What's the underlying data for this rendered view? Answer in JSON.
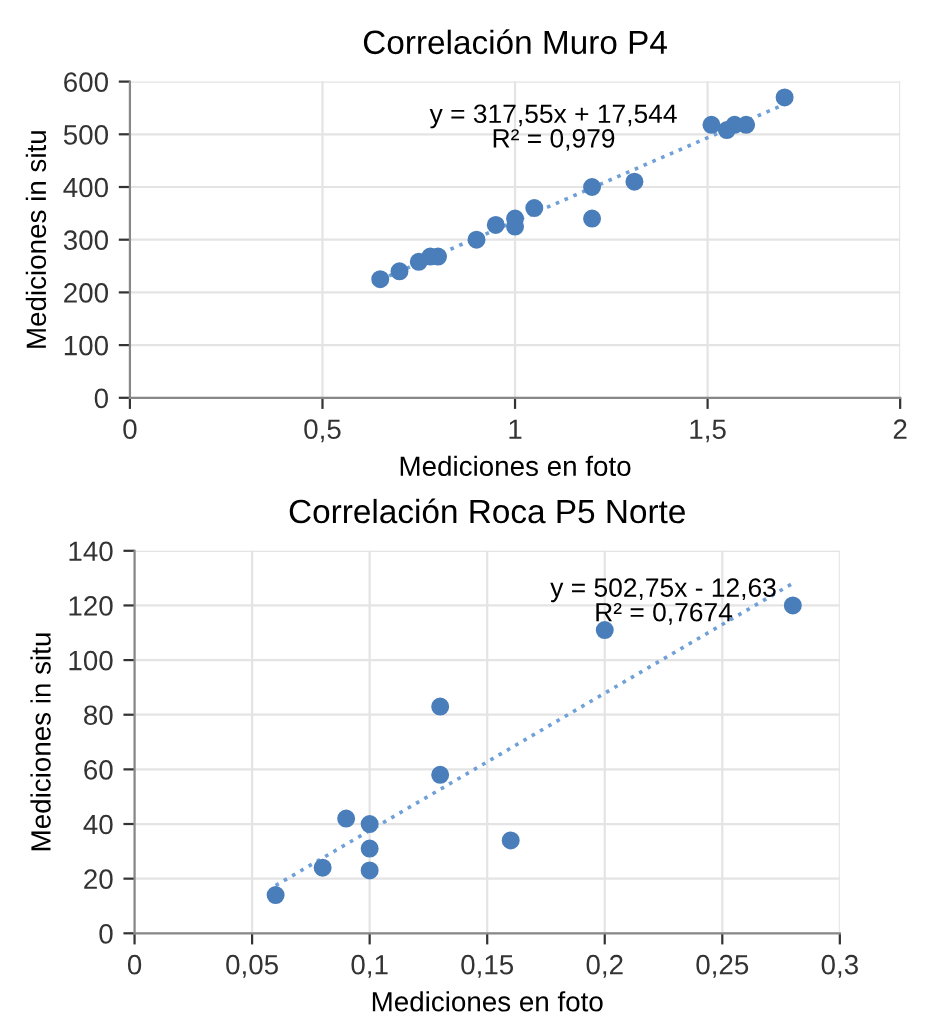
{
  "chart_data": [
    {
      "type": "scatter",
      "title": "Correlación Muro P4",
      "xlabel": "Mediciones en foto",
      "ylabel": "Mediciones in situ",
      "annotations": [
        "y = 317,55x + 17,544\nR² = 0,979"
      ],
      "series": [
        {
          "color": "#4a7ebb",
          "marker": "circle",
          "x": [
            0.65,
            0.7,
            0.75,
            0.78,
            0.8,
            0.9,
            0.95,
            1.0,
            1.0,
            1.05,
            1.2,
            1.2,
            1.31,
            1.51,
            1.55,
            1.57,
            1.6,
            1.7
          ],
          "values": [
            225,
            240,
            258,
            268,
            268,
            300,
            328,
            340,
            325,
            360,
            400,
            340,
            410,
            518,
            508,
            518,
            518,
            570
          ]
        },
        {
          "type": "line",
          "color": "#6fa0d8",
          "line_style": "dotted",
          "marker": "none",
          "x": [
            0.65,
            1.7
          ],
          "values": [
            224,
            557
          ]
        }
      ],
      "xlim": [
        0,
        2
      ],
      "xticks": [
        0,
        {
          "value": 0.5,
          "label": "0,5"
        },
        1,
        {
          "value": 1.5,
          "label": "1,5"
        },
        2
      ],
      "ylim": [
        0,
        600
      ],
      "yticks": [
        0,
        100,
        200,
        300,
        400,
        500,
        600
      ],
      "grid": true,
      "legend": false
    },
    {
      "type": "scatter",
      "title": "Correlación Roca P5 Norte",
      "xlabel": "Mediciones en foto",
      "ylabel": "Mediciones in situ",
      "annotations": [
        "y = 502,75x - 12,63\nR² = 0,7674"
      ],
      "series": [
        {
          "color": "#4a7ebb",
          "marker": "circle",
          "x": [
            0.06,
            0.08,
            0.09,
            0.1,
            0.1,
            0.1,
            0.13,
            0.13,
            0.16,
            0.2,
            0.28
          ],
          "values": [
            14,
            24,
            42,
            40,
            31,
            23,
            83,
            58,
            34,
            111,
            120
          ]
        },
        {
          "type": "line",
          "color": "#6fa0d8",
          "line_style": "dotted",
          "marker": "none",
          "x": [
            0.06,
            0.28
          ],
          "values": [
            17.5,
            128.1
          ]
        }
      ],
      "xlim": [
        0,
        0.3
      ],
      "xticks": [
        0,
        {
          "value": 0.05,
          "label": "0,05"
        },
        {
          "value": 0.1,
          "label": "0,1"
        },
        {
          "value": 0.15,
          "label": "0,15"
        },
        {
          "value": 0.2,
          "label": "0,2"
        },
        {
          "value": 0.25,
          "label": "0,25"
        },
        {
          "value": 0.3,
          "label": "0,3"
        }
      ],
      "ylim": [
        0,
        140
      ],
      "yticks": [
        0,
        20,
        40,
        60,
        80,
        100,
        120,
        140
      ],
      "grid": true,
      "legend": false
    }
  ]
}
